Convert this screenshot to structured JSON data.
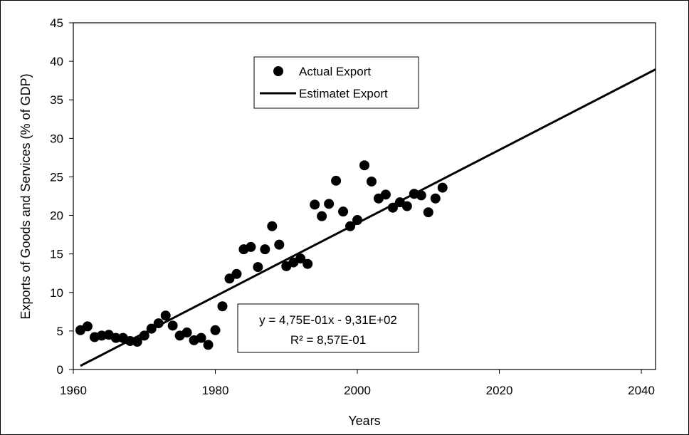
{
  "chart_data": {
    "type": "scatter",
    "xlabel": "Years",
    "ylabel": "Exports of Goods and Services (% of GDP)",
    "xlim": [
      1960,
      2042
    ],
    "ylim": [
      0,
      45
    ],
    "xticks": [
      1960,
      1980,
      2000,
      2020,
      2040
    ],
    "yticks": [
      0,
      5,
      10,
      15,
      20,
      25,
      30,
      35,
      40,
      45
    ],
    "grid": false,
    "legend_position": "top-center",
    "series": [
      {
        "name": "Actual Export",
        "kind": "scatter",
        "color": "#000000",
        "x": [
          1961,
          1962,
          1963,
          1964,
          1965,
          1966,
          1967,
          1968,
          1969,
          1970,
          1971,
          1972,
          1973,
          1974,
          1975,
          1976,
          1977,
          1978,
          1979,
          1980,
          1981,
          1982,
          1983,
          1984,
          1985,
          1986,
          1987,
          1988,
          1989,
          1990,
          1991,
          1992,
          1993,
          1994,
          1995,
          1996,
          1997,
          1998,
          1999,
          2000,
          2001,
          2002,
          2003,
          2004,
          2005,
          2006,
          2007,
          2008,
          2009,
          2010,
          2011,
          2012
        ],
        "y": [
          5.1,
          5.6,
          4.2,
          4.4,
          4.5,
          4.1,
          4.1,
          3.7,
          3.6,
          4.4,
          5.3,
          6.0,
          7.0,
          5.7,
          4.4,
          4.8,
          3.8,
          4.1,
          3.2,
          5.1,
          8.2,
          11.8,
          12.4,
          15.6,
          15.9,
          13.3,
          15.6,
          18.6,
          16.2,
          13.4,
          13.9,
          14.4,
          13.7,
          21.4,
          19.9,
          21.5,
          24.5,
          20.5,
          18.6,
          19.4,
          26.5,
          24.4,
          22.2,
          22.7,
          21.0,
          21.7,
          21.2,
          22.8,
          22.6,
          20.4,
          22.2,
          23.6
        ]
      },
      {
        "name": "Estimatet Export",
        "kind": "line",
        "color": "#000000",
        "slope": 0.475,
        "intercept": -931,
        "x_range": [
          1961,
          2042
        ]
      }
    ],
    "annotation": {
      "equation": "y = 4,75E-01x - 9,31E+02",
      "r_squared": "R² = 8,57E-01"
    }
  }
}
